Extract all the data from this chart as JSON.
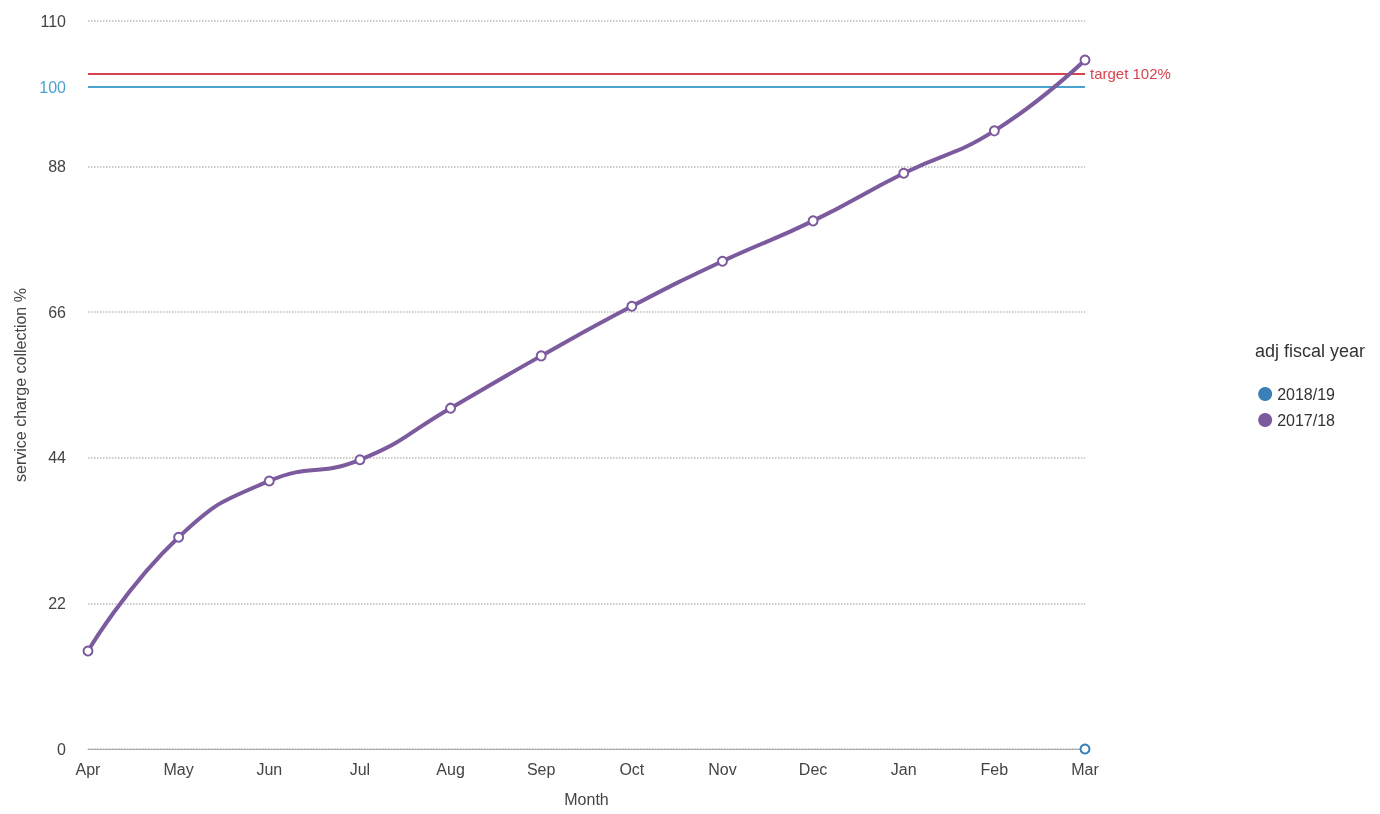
{
  "chart_data": {
    "type": "line",
    "xlabel": "Month",
    "ylabel": "service charge collection %",
    "legend_title": "adj fiscal year",
    "categories": [
      "Apr",
      "May",
      "Jun",
      "Jul",
      "Aug",
      "Sep",
      "Oct",
      "Nov",
      "Dec",
      "Jan",
      "Feb",
      "Mar"
    ],
    "series": [
      {
        "name": "2018/19",
        "color": "#3a7fb8",
        "values": [
          null,
          null,
          null,
          null,
          null,
          null,
          null,
          null,
          null,
          null,
          null,
          0
        ]
      },
      {
        "name": "2017/18",
        "color": "#7b5a9e",
        "values": [
          14.8,
          32.0,
          40.5,
          43.7,
          51.5,
          59.4,
          66.9,
          73.7,
          79.8,
          87.0,
          93.4,
          104.1
        ]
      }
    ],
    "ylim": [
      0,
      110
    ],
    "yticks": [
      0,
      22,
      44,
      66,
      88,
      100,
      110
    ],
    "ref_lines": [
      {
        "axis": "y",
        "value": 100,
        "label": null,
        "color": "#4aa3cf"
      },
      {
        "axis": "y",
        "value": 102,
        "label": "target 102%",
        "color": "#d9434f"
      }
    ],
    "grid": "y",
    "legend": "right",
    "marker": "circle",
    "line_style": "solid"
  }
}
